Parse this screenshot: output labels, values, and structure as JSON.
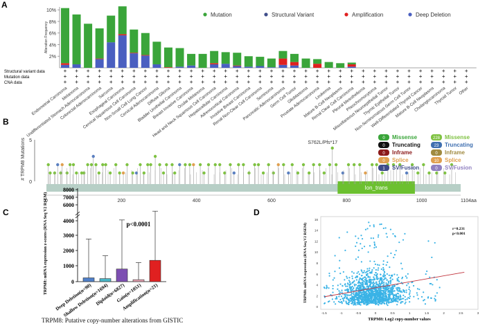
{
  "panels": {
    "A": "A",
    "B": "B",
    "C": "C",
    "D": "D"
  },
  "colors": {
    "mutation": "#3aa53a",
    "structural": "#3f4d8a",
    "amplification": "#e02020",
    "deletion": "#4a5fc0",
    "lollipop": "#7fc242",
    "track": "#b7cfc6",
    "domain": "#6cc030",
    "boxC_deep": "#4f7fc8",
    "boxC_shallow": "#49b6c6",
    "boxC_diploid": "#7d4fb2",
    "boxC_gain": "#e7a0b0",
    "boxC_amp": "#e02020",
    "scatter": "#3ab3e6",
    "regline": "#c0303a"
  },
  "chart_data": [
    {
      "type": "bar",
      "title": "",
      "ylabel": "Alteration Frequency",
      "ylim": [
        0,
        10.5
      ],
      "yticks": [
        "10%",
        "8%",
        "6%",
        "4%",
        "2%"
      ],
      "ytick_values": [
        10,
        8,
        6,
        4,
        2
      ],
      "legend": [
        "Mutation",
        "Structural Variant",
        "Amplification",
        "Deep Deletion"
      ],
      "row_labels": [
        "Structural variant data",
        "Mutation data",
        "CNA data"
      ],
      "categories": [
        "Endometrial Carcinoma",
        "Melanoma",
        "Undifferentiated Stomach Adenocarcinoma",
        "Colorectal Adenocarcinoma",
        "Sarcoma",
        "Esophageal Carcinoma",
        "Cervical Squamous Cell Carcinoma",
        "Non-Small Cell Lung Cancer",
        "Cervical Adenocarcinoma",
        "Diffuse Glioma",
        "Bladder Urothelial Carcinoma",
        "Breast Invasive Carcinoma",
        "Ocular Melanoma",
        "Head and Neck Squamous Cell Carcinoma",
        "Hepatocellular Carcinoma",
        "Adrenocortical Carcinoma",
        "Invasive Breast Carcinoma",
        "Renal Non-Clear Cell Carcinoma",
        "Seminoma",
        "Pancreatic Adenocarcinoma",
        "Germ Cell Tumor",
        "Glioblastoma",
        "Prostate Adenocarcinoma",
        "Leukemia",
        "Mature B-Cell Neoplasms",
        "Renal Clear Cell Carcinoma",
        "Pleural Mesothelioma",
        "Pheochromocytoma",
        "Miscellaneous Neuroepithelial Tumor",
        "Thymic Epithelial Tumor",
        "Non-Seminomatous Germ Cell Tumor",
        "Well-Differentiated Thyroid Cancer",
        "Mature B-Cell Neoplasms",
        "Cholangiocarcinoma",
        "Thyroid Tumor",
        "Other"
      ],
      "series": [
        {
          "name": "Mutation",
          "values": [
            9.5,
            8.6,
            7.6,
            5.2,
            4.6,
            4.8,
            4.0,
            3.8,
            3.9,
            3.4,
            3.2,
            2.0,
            2.4,
            2.1,
            2.0,
            2.2,
            1.8,
            1.6,
            1.5,
            1.3,
            1.4,
            1.6,
            0.8,
            1.0,
            0.8,
            0.3,
            0,
            0,
            0,
            0,
            0,
            0,
            0,
            0,
            0,
            0
          ]
        },
        {
          "name": "Structural Variant",
          "values": [
            0,
            0,
            0,
            0,
            0,
            0,
            0,
            0,
            0,
            0,
            0,
            0,
            0,
            0,
            0,
            0,
            0,
            0,
            0,
            0,
            0,
            0,
            0,
            0,
            0,
            0,
            0,
            0,
            0,
            0,
            0,
            0,
            0,
            0,
            0,
            0
          ]
        },
        {
          "name": "Amplification",
          "values": [
            0.3,
            0,
            0,
            0.1,
            0,
            0.2,
            0.1,
            0.1,
            0,
            0.1,
            0,
            0,
            0,
            0.2,
            0,
            0.1,
            0,
            0,
            0,
            1.1,
            0.6,
            0,
            0.7,
            0,
            0,
            0.4,
            0,
            0,
            0,
            0,
            0,
            0,
            0,
            0,
            0,
            0
          ]
        },
        {
          "name": "Deep Deletion",
          "values": [
            0.5,
            0.6,
            0,
            1.5,
            4.4,
            5.6,
            2.5,
            2.1,
            0.6,
            0,
            0.2,
            0.4,
            0,
            0.6,
            0.7,
            0.3,
            0.2,
            0.3,
            0.1,
            0.5,
            0.4,
            0,
            0,
            0,
            0,
            0.2,
            0,
            0,
            0,
            0,
            0,
            0,
            0,
            0,
            0,
            0
          ]
        }
      ]
    },
    {
      "type": "scatter",
      "title": "",
      "ylabel": "# TRPM8 Mutations",
      "xlabel": "",
      "xlim": [
        0,
        1104
      ],
      "xticks": [
        "0",
        "200",
        "400",
        "600",
        "800",
        "1000",
        "1104aa"
      ],
      "xtick_values": [
        0,
        200,
        400,
        600,
        800,
        1000,
        1104
      ],
      "ylim": [
        0,
        5
      ],
      "yticks": [
        "0",
        "5"
      ],
      "ytick_values": [
        0,
        5
      ],
      "annotation": "S762L/Pfs*17",
      "domain": {
        "label": "Ion_trans",
        "start": 776,
        "end": 982
      },
      "legend_left": [
        {
          "count": "0",
          "label": "Missense"
        },
        {
          "count": "0",
          "label": "Truncating"
        },
        {
          "count": "0",
          "label": "Inframe"
        },
        {
          "count": "0",
          "label": "Splice"
        },
        {
          "count": "1",
          "label": "SV/Fusion"
        }
      ],
      "legend_right": [
        {
          "count": "228",
          "label": "Missense"
        },
        {
          "count": "23",
          "label": "Truncating"
        },
        {
          "count": "0",
          "label": "Inframe"
        },
        {
          "count": "10",
          "label": "Splice"
        },
        {
          "count": "0",
          "label": "SV/Fusion"
        }
      ],
      "mutations": [
        [
          5,
          2
        ],
        [
          10,
          1
        ],
        [
          22,
          1
        ],
        [
          30,
          2
        ],
        [
          38,
          1
        ],
        [
          42,
          2
        ],
        [
          55,
          1
        ],
        [
          63,
          2
        ],
        [
          72,
          2
        ],
        [
          80,
          1
        ],
        [
          94,
          1
        ],
        [
          100,
          1
        ],
        [
          110,
          2
        ],
        [
          120,
          2
        ],
        [
          125,
          3
        ],
        [
          132,
          2
        ],
        [
          140,
          1
        ],
        [
          150,
          2
        ],
        [
          158,
          2
        ],
        [
          170,
          1
        ],
        [
          185,
          2
        ],
        [
          195,
          1
        ],
        [
          205,
          1
        ],
        [
          215,
          2
        ],
        [
          230,
          1
        ],
        [
          240,
          1
        ],
        [
          250,
          2
        ],
        [
          260,
          1
        ],
        [
          270,
          2
        ],
        [
          278,
          2
        ],
        [
          290,
          3
        ],
        [
          302,
          2
        ],
        [
          312,
          1
        ],
        [
          320,
          2
        ],
        [
          335,
          2
        ],
        [
          342,
          1
        ],
        [
          355,
          2
        ],
        [
          370,
          2
        ],
        [
          382,
          2
        ],
        [
          392,
          2
        ],
        [
          410,
          2
        ],
        [
          420,
          1
        ],
        [
          432,
          2
        ],
        [
          450,
          2
        ],
        [
          462,
          2
        ],
        [
          475,
          1
        ],
        [
          490,
          2
        ],
        [
          500,
          1
        ],
        [
          512,
          2
        ],
        [
          525,
          2
        ],
        [
          540,
          1
        ],
        [
          555,
          2
        ],
        [
          565,
          2
        ],
        [
          578,
          1
        ],
        [
          592,
          2
        ],
        [
          605,
          1
        ],
        [
          618,
          2
        ],
        [
          632,
          2
        ],
        [
          645,
          1
        ],
        [
          655,
          2
        ],
        [
          670,
          1
        ],
        [
          685,
          2
        ],
        [
          700,
          1
        ],
        [
          712,
          2
        ],
        [
          728,
          2
        ],
        [
          740,
          1
        ],
        [
          755,
          2
        ],
        [
          762,
          4
        ],
        [
          772,
          2
        ],
        [
          790,
          1
        ],
        [
          805,
          2
        ],
        [
          820,
          2
        ],
        [
          835,
          2
        ],
        [
          850,
          1
        ],
        [
          868,
          2
        ],
        [
          880,
          2
        ],
        [
          895,
          1
        ],
        [
          910,
          2
        ],
        [
          925,
          2
        ],
        [
          942,
          2
        ],
        [
          960,
          1
        ],
        [
          975,
          2
        ],
        [
          990,
          1
        ],
        [
          1005,
          2
        ],
        [
          1020,
          1
        ],
        [
          1040,
          1
        ],
        [
          1062,
          1
        ],
        [
          1080,
          2
        ]
      ]
    },
    {
      "type": "bar",
      "title": "p<0.0001",
      "ylabel": "TRPM8: mRNA expression z-scores (RNA Seq V2 RSEM)",
      "xlabel": "",
      "caption": "TRPM8: Putative copy-number alterations from GISTIC",
      "yticks": [
        "0",
        "1000",
        "2000",
        "3000",
        "4000",
        "6000",
        "7000",
        "8000"
      ],
      "ytick_values": [
        0,
        1000,
        2000,
        3000,
        4000,
        6000,
        7000,
        8000
      ],
      "categories": [
        "Deep Deletion(n=90)",
        "Shallow Deletion(n=1694)",
        "Diploid(n=6827)",
        "Gain(n=1051)",
        "Amplification(n=21)"
      ],
      "values": [
        250,
        200,
        830,
        130,
        1400
      ],
      "error_upper": [
        2800,
        1700,
        4100,
        1250,
        5200
      ]
    },
    {
      "type": "scatter",
      "title": "",
      "xlabel": "TRPM8: Log2 copy-number values",
      "ylabel": "TRPM8: mRNA expression (RNA Seq V2 RSEM)",
      "xlim": [
        -1.6,
        3.0
      ],
      "ylim": [
        -0.5,
        16.5
      ],
      "xticks": [
        "-1.5",
        "-1",
        "-0.5",
        "0",
        "0.5",
        "1",
        "1.5",
        "2",
        "2.5",
        "3"
      ],
      "xtick_values": [
        -1.5,
        -1,
        -0.5,
        0,
        0.5,
        1,
        1.5,
        2,
        2.5,
        3
      ],
      "yticks": [
        "0",
        "2",
        "4",
        "6",
        "8",
        "10",
        "12",
        "14",
        "16"
      ],
      "ytick_values": [
        0,
        2,
        4,
        6,
        8,
        10,
        12,
        14,
        16
      ],
      "annotation_r": "r=0.231",
      "annotation_p": "p<0.001",
      "regression": {
        "x": [
          -1.5,
          2.6
        ],
        "y": [
          1.8,
          6.3
        ]
      }
    }
  ]
}
